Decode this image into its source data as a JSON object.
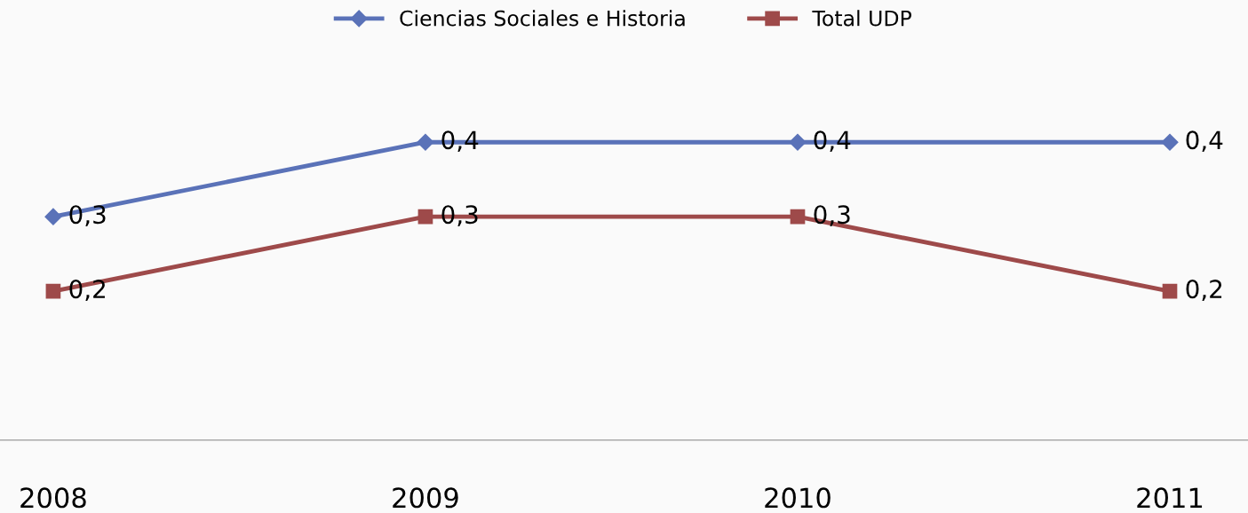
{
  "chart_data": {
    "type": "line",
    "categories": [
      "2008",
      "2009",
      "2010",
      "2011"
    ],
    "series": [
      {
        "name": "Ciencias Sociales e Historia",
        "color": "#5a72b8",
        "values": [
          0.3,
          0.4,
          0.4,
          0.4
        ],
        "value_labels": [
          "0,3",
          "0,4",
          "0,4",
          "0,4"
        ],
        "marker": "diamond"
      },
      {
        "name": "Total UDP",
        "color": "#9e4a4a",
        "values": [
          0.2,
          0.3,
          0.3,
          0.2
        ],
        "value_labels": [
          "0,2",
          "0,3",
          "0,3",
          "0,2"
        ],
        "marker": "square"
      }
    ],
    "legend": "top",
    "grid": false,
    "line_style": "solid"
  }
}
